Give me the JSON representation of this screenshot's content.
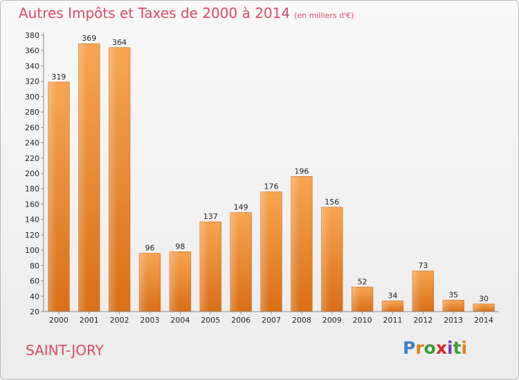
{
  "header": {
    "title": "Autres Impôts et Taxes de 2000 à 2014",
    "unit": "(en milliers d'€)"
  },
  "commune": "SAINT-JORY",
  "logo": {
    "letters": [
      "P",
      "r",
      "o",
      "x",
      "i",
      "t",
      "i"
    ],
    "colors": [
      "#3a7fc8",
      "#e07b16",
      "#3a9c3a",
      "#d62828",
      "#7a3fb0",
      "#3a9c3a",
      "#e07b16"
    ]
  },
  "chart_data": {
    "type": "bar",
    "categories": [
      "2000",
      "2001",
      "2002",
      "2003",
      "2004",
      "2005",
      "2006",
      "2007",
      "2008",
      "2009",
      "2010",
      "2011",
      "2012",
      "2013",
      "2014"
    ],
    "values": [
      319,
      369,
      364,
      96,
      98,
      137,
      149,
      176,
      196,
      156,
      52,
      34,
      73,
      35,
      30
    ],
    "ylim": [
      20,
      380
    ],
    "yticks": [
      20,
      40,
      60,
      80,
      100,
      120,
      140,
      160,
      180,
      200,
      220,
      240,
      260,
      280,
      300,
      320,
      340,
      360,
      380
    ],
    "grid": false,
    "bar_color": "#e87f2a"
  }
}
